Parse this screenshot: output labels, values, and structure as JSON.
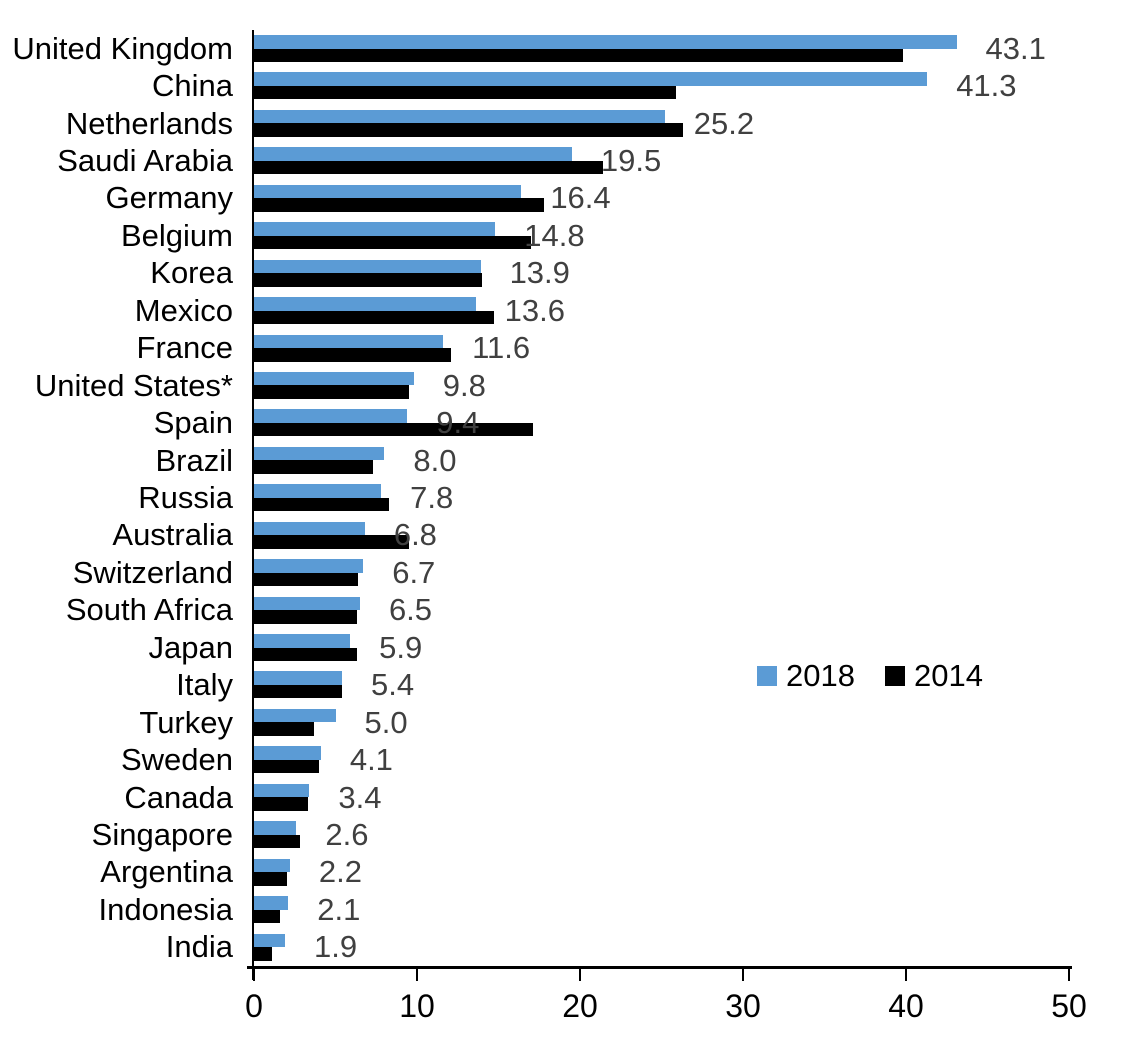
{
  "chart_data": {
    "type": "bar",
    "orientation": "horizontal",
    "title": "",
    "xlabel": "",
    "ylabel": "",
    "xlim": [
      0,
      50
    ],
    "x_ticks": [
      "0",
      "10",
      "20",
      "30",
      "40",
      "50"
    ],
    "grid": false,
    "categories": [
      "United Kingdom",
      "China",
      "Netherlands",
      "Saudi Arabia",
      "Germany",
      "Belgium",
      "Korea",
      "Mexico",
      "France",
      "United States*",
      "Spain",
      "Brazil",
      "Russia",
      "Australia",
      "Switzerland",
      "South Africa",
      "Japan",
      "Italy",
      "Turkey",
      "Sweden",
      "Canada",
      "Singapore",
      "Argentina",
      "Indonesia",
      "India"
    ],
    "series": [
      {
        "name": "2018",
        "color": "#5b9bd5",
        "values": [
          43.1,
          41.3,
          25.2,
          19.5,
          16.4,
          14.8,
          13.9,
          13.6,
          11.6,
          9.8,
          9.4,
          8.0,
          7.8,
          6.8,
          6.7,
          6.5,
          5.9,
          5.4,
          5.0,
          4.1,
          3.4,
          2.6,
          2.2,
          2.1,
          1.9
        ],
        "data_labels": [
          "43.1",
          "41.3",
          "25.2",
          "19.5",
          "16.4",
          "14.8",
          "13.9",
          "13.6",
          "11.6",
          "9.8",
          "9.4",
          "8.0",
          "7.8",
          "6.8",
          "6.7",
          "6.5",
          "5.9",
          "5.4",
          "5.0",
          "4.1",
          "3.4",
          "2.6",
          "2.2",
          "2.1",
          "1.9"
        ]
      },
      {
        "name": "2014",
        "color": "#000000",
        "values": [
          39.8,
          25.9,
          26.3,
          21.4,
          17.8,
          17.0,
          14.0,
          14.7,
          12.1,
          9.5,
          17.1,
          7.3,
          8.3,
          9.5,
          6.4,
          6.3,
          6.3,
          5.4,
          3.7,
          4.0,
          3.3,
          2.8,
          2.0,
          1.6,
          1.1
        ]
      }
    ],
    "legend": {
      "position": "center-right",
      "entries": [
        {
          "label": "2018",
          "color": "#5b9bd5"
        },
        {
          "label": "2014",
          "color": "#000000"
        }
      ]
    },
    "value_label_color": "#404040",
    "axis_color": "#000000"
  }
}
